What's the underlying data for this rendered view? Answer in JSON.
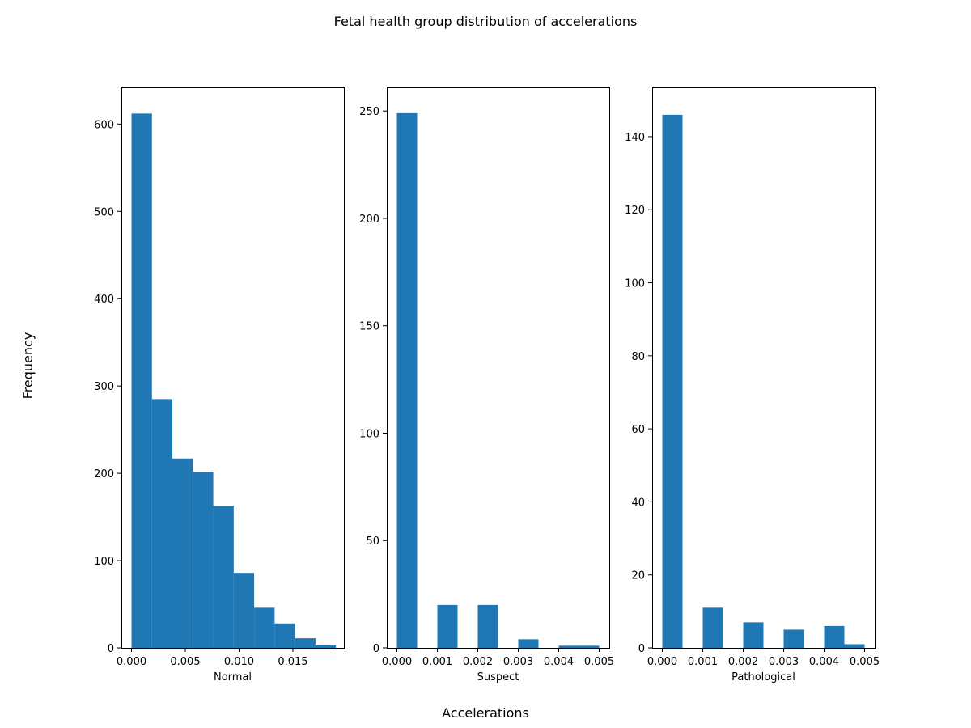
{
  "figure": {
    "title": "Fetal health group distribution of accelerations",
    "xlabel": "Accelerations",
    "ylabel": "Frequency",
    "bar_color": "#1f77b4"
  },
  "chart_data": [
    {
      "type": "bar",
      "name": "Normal",
      "xlabel": "Normal",
      "xlim": [
        -0.00094,
        0.01974
      ],
      "ylim": [
        0,
        642
      ],
      "xticks": [
        0.0,
        0.005,
        0.01,
        0.015
      ],
      "xtick_labels": [
        "0.000",
        "0.005",
        "0.010",
        "0.015"
      ],
      "yticks": [
        0,
        100,
        200,
        300,
        400,
        500,
        600
      ],
      "ytick_labels": [
        "0",
        "100",
        "200",
        "300",
        "400",
        "500",
        "600"
      ],
      "bin_edges": [
        0.0,
        0.0019,
        0.0038,
        0.0057,
        0.0076,
        0.0095,
        0.0114,
        0.0133,
        0.0152,
        0.0171,
        0.019
      ],
      "values": [
        612,
        285,
        217,
        202,
        163,
        86,
        46,
        28,
        11,
        3
      ]
    },
    {
      "type": "bar",
      "name": "Suspect",
      "xlabel": "Suspect",
      "xlim": [
        -0.00025,
        0.00525
      ],
      "ylim": [
        0,
        261
      ],
      "xticks": [
        0.0,
        0.001,
        0.002,
        0.003,
        0.004,
        0.005
      ],
      "xtick_labels": [
        "0.000",
        "0.001",
        "0.002",
        "0.003",
        "0.004",
        "0.005"
      ],
      "yticks": [
        0,
        50,
        100,
        150,
        200,
        250
      ],
      "ytick_labels": [
        "0",
        "50",
        "100",
        "150",
        "200",
        "250"
      ],
      "bin_edges": [
        0.0,
        0.0005,
        0.001,
        0.0015,
        0.002,
        0.0025,
        0.003,
        0.0035,
        0.004,
        0.0045,
        0.005
      ],
      "values": [
        249,
        0,
        20,
        0,
        20,
        0,
        4,
        0,
        1,
        1
      ]
    },
    {
      "type": "bar",
      "name": "Pathological",
      "xlabel": "Pathological",
      "xlim": [
        -0.00025,
        0.00525
      ],
      "ylim": [
        0,
        153.5
      ],
      "xticks": [
        0.0,
        0.001,
        0.002,
        0.003,
        0.004,
        0.005
      ],
      "xtick_labels": [
        "0.000",
        "0.001",
        "0.002",
        "0.003",
        "0.004",
        "0.005"
      ],
      "yticks": [
        0,
        20,
        40,
        60,
        80,
        100,
        120,
        140
      ],
      "ytick_labels": [
        "0",
        "20",
        "40",
        "60",
        "80",
        "100",
        "120",
        "140"
      ],
      "bin_edges": [
        0.0,
        0.0005,
        0.001,
        0.0015,
        0.002,
        0.0025,
        0.003,
        0.0035,
        0.004,
        0.0045,
        0.005
      ],
      "values": [
        146,
        0,
        11,
        0,
        7,
        0,
        5,
        0,
        6,
        1
      ]
    }
  ]
}
